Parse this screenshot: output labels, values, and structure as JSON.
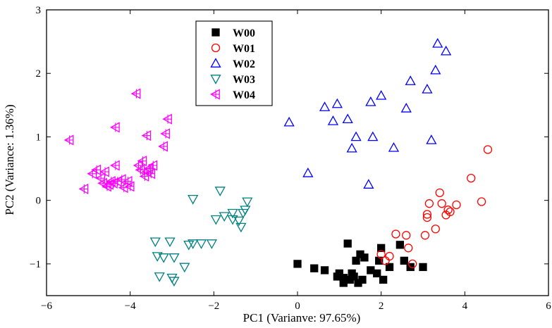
{
  "chart_data": {
    "type": "scatter",
    "xlabel": "PC1 (Varianve: 97.65%)",
    "ylabel": "PC2 (Variance: 1.36%)",
    "xlim": [
      -6,
      6
    ],
    "ylim": [
      -1.5,
      3
    ],
    "xticks": [
      -6,
      -4,
      -2,
      0,
      2,
      4,
      6
    ],
    "yticks": [
      -1,
      0,
      1,
      2,
      3
    ],
    "legend": "top-left inside",
    "series": [
      {
        "name": "W00",
        "marker": "square",
        "color": "#000000",
        "filled": true,
        "points": [
          [
            0.0,
            -1.0
          ],
          [
            0.4,
            -1.07
          ],
          [
            0.65,
            -1.1
          ],
          [
            0.95,
            -1.2
          ],
          [
            1.1,
            -1.3
          ],
          [
            1.2,
            -0.68
          ],
          [
            1.1,
            -1.22
          ],
          [
            1.3,
            -1.15
          ],
          [
            1.35,
            -1.2
          ],
          [
            1.4,
            -0.95
          ],
          [
            1.5,
            -0.85
          ],
          [
            1.55,
            -1.25
          ],
          [
            1.6,
            -0.9
          ],
          [
            1.75,
            -1.1
          ],
          [
            1.9,
            -1.15
          ],
          [
            1.95,
            -0.95
          ],
          [
            2.0,
            -0.75
          ],
          [
            2.05,
            -1.25
          ],
          [
            2.2,
            -1.05
          ],
          [
            2.45,
            -0.7
          ],
          [
            2.55,
            -0.95
          ],
          [
            2.7,
            -1.05
          ],
          [
            3.0,
            -1.05
          ],
          [
            1.45,
            -1.3
          ],
          [
            1.0,
            -1.15
          ],
          [
            1.25,
            -1.25
          ]
        ]
      },
      {
        "name": "W01",
        "marker": "circle",
        "color": "#ff0000",
        "filled": false,
        "points": [
          [
            2.0,
            -0.85
          ],
          [
            2.1,
            -0.95
          ],
          [
            2.2,
            -0.88
          ],
          [
            2.35,
            -0.53
          ],
          [
            2.6,
            -0.55
          ],
          [
            2.65,
            -0.75
          ],
          [
            2.75,
            -1.0
          ],
          [
            3.05,
            -0.55
          ],
          [
            3.1,
            -0.27
          ],
          [
            3.15,
            -0.05
          ],
          [
            3.3,
            -0.45
          ],
          [
            3.4,
            0.12
          ],
          [
            3.45,
            -0.05
          ],
          [
            3.55,
            -0.23
          ],
          [
            3.6,
            -0.15
          ],
          [
            3.65,
            -0.18
          ],
          [
            3.8,
            -0.07
          ],
          [
            4.15,
            0.35
          ],
          [
            4.4,
            -0.02
          ],
          [
            4.55,
            0.8
          ],
          [
            3.1,
            -0.22
          ]
        ]
      },
      {
        "name": "W02",
        "marker": "triangle-up",
        "color": "#0000ff",
        "filled": false,
        "points": [
          [
            -0.2,
            1.23
          ],
          [
            0.25,
            0.43
          ],
          [
            0.65,
            1.47
          ],
          [
            0.85,
            1.25
          ],
          [
            0.95,
            1.52
          ],
          [
            1.2,
            1.28
          ],
          [
            1.3,
            0.82
          ],
          [
            1.4,
            1.0
          ],
          [
            1.7,
            0.25
          ],
          [
            1.75,
            1.55
          ],
          [
            1.8,
            1.0
          ],
          [
            2.0,
            1.65
          ],
          [
            2.3,
            0.83
          ],
          [
            2.6,
            1.45
          ],
          [
            2.7,
            1.88
          ],
          [
            3.1,
            1.75
          ],
          [
            3.2,
            0.95
          ],
          [
            3.3,
            2.05
          ],
          [
            3.35,
            2.47
          ],
          [
            3.55,
            2.35
          ]
        ]
      },
      {
        "name": "W03",
        "marker": "triangle-down",
        "color": "#008080",
        "filled": false,
        "points": [
          [
            -3.4,
            -0.65
          ],
          [
            -3.35,
            -0.88
          ],
          [
            -3.2,
            -0.9
          ],
          [
            -3.3,
            -1.2
          ],
          [
            -3.0,
            -1.22
          ],
          [
            -2.95,
            -1.27
          ],
          [
            -3.05,
            -0.65
          ],
          [
            -2.95,
            -0.9
          ],
          [
            -2.7,
            -1.05
          ],
          [
            -2.6,
            -0.7
          ],
          [
            -2.5,
            -0.68
          ],
          [
            -2.3,
            -0.68
          ],
          [
            -2.05,
            -0.68
          ],
          [
            -1.95,
            -0.3
          ],
          [
            -1.85,
            0.15
          ],
          [
            -2.5,
            0.02
          ],
          [
            -1.75,
            -0.25
          ],
          [
            -1.55,
            -0.3
          ],
          [
            -1.55,
            -0.2
          ],
          [
            -1.4,
            -0.32
          ],
          [
            -1.35,
            -0.42
          ],
          [
            -1.3,
            -0.2
          ],
          [
            -1.25,
            -0.15
          ],
          [
            -1.2,
            -0.02
          ]
        ]
      },
      {
        "name": "W04",
        "marker": "triangle-left-plus",
        "color": "#ff00ff",
        "filled": false,
        "points": [
          [
            -5.45,
            0.95
          ],
          [
            -5.1,
            0.18
          ],
          [
            -4.9,
            0.42
          ],
          [
            -4.8,
            0.48
          ],
          [
            -4.7,
            0.35
          ],
          [
            -4.65,
            0.27
          ],
          [
            -4.6,
            0.45
          ],
          [
            -4.55,
            0.22
          ],
          [
            -4.45,
            0.3
          ],
          [
            -4.4,
            0.27
          ],
          [
            -4.35,
            0.55
          ],
          [
            -4.35,
            1.15
          ],
          [
            -4.3,
            0.3
          ],
          [
            -4.2,
            0.33
          ],
          [
            -4.15,
            0.2
          ],
          [
            -4.05,
            0.3
          ],
          [
            -4.0,
            0.22
          ],
          [
            -3.85,
            1.68
          ],
          [
            -3.8,
            0.55
          ],
          [
            -3.75,
            0.48
          ],
          [
            -3.7,
            0.62
          ],
          [
            -3.65,
            0.38
          ],
          [
            -3.6,
            0.45
          ],
          [
            -3.6,
            1.02
          ],
          [
            -3.55,
            0.5
          ],
          [
            -3.5,
            0.42
          ],
          [
            -3.45,
            0.55
          ],
          [
            -3.2,
            0.85
          ],
          [
            -3.15,
            1.05
          ],
          [
            -3.1,
            1.28
          ],
          [
            -4.5,
            0.25
          ]
        ]
      }
    ]
  }
}
